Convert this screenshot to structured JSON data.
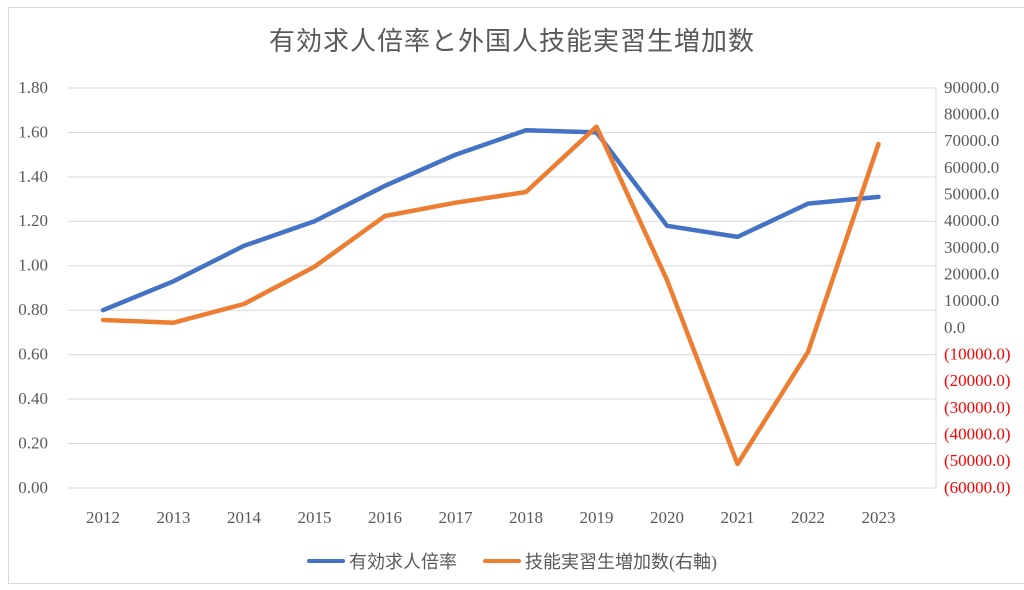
{
  "title": "有効求人倍率と外国人技能実習生増加数",
  "colors": {
    "series_blue": "#4472C4",
    "series_orange": "#ED7D31",
    "grid": "#D9D9D9",
    "text": "#595959",
    "negative_label": "#FF0000",
    "background": "#FFFFFF"
  },
  "chart_data": {
    "type": "line",
    "title": "有効求人倍率と外国人技能実習生増加数",
    "categories": [
      "2012",
      "2013",
      "2014",
      "2015",
      "2016",
      "2017",
      "2018",
      "2019",
      "2020",
      "2021",
      "2022",
      "2023"
    ],
    "series": [
      {
        "key": "effective-jobs-ratio",
        "name": "有効求人倍率",
        "axis": "left",
        "color_key": "series_blue",
        "values": [
          0.8,
          0.93,
          1.09,
          1.2,
          1.36,
          1.5,
          1.61,
          1.6,
          1.18,
          1.13,
          1.28,
          1.31
        ]
      },
      {
        "key": "trainee-increase",
        "name": "技能実習生増加数(右軸)",
        "axis": "right",
        "color_key": "series_orange",
        "values": [
          3000,
          2000,
          9000,
          23000,
          42000,
          47000,
          51000,
          75500,
          18000,
          -51000,
          -9000,
          69000
        ]
      }
    ],
    "left_axis": {
      "min": 0.0,
      "max": 1.8,
      "step": 0.2,
      "decimals": 2
    },
    "right_axis": {
      "min": -60000,
      "max": 90000,
      "step": 10000,
      "decimals": 1,
      "negative_style": "red-parentheses"
    },
    "grid": true,
    "legend_position": "bottom",
    "xlabel": "",
    "ylabel": ""
  },
  "legend": {
    "items": [
      {
        "label": "有効求人倍率"
      },
      {
        "label": "技能実習生増加数(右軸)"
      }
    ]
  }
}
